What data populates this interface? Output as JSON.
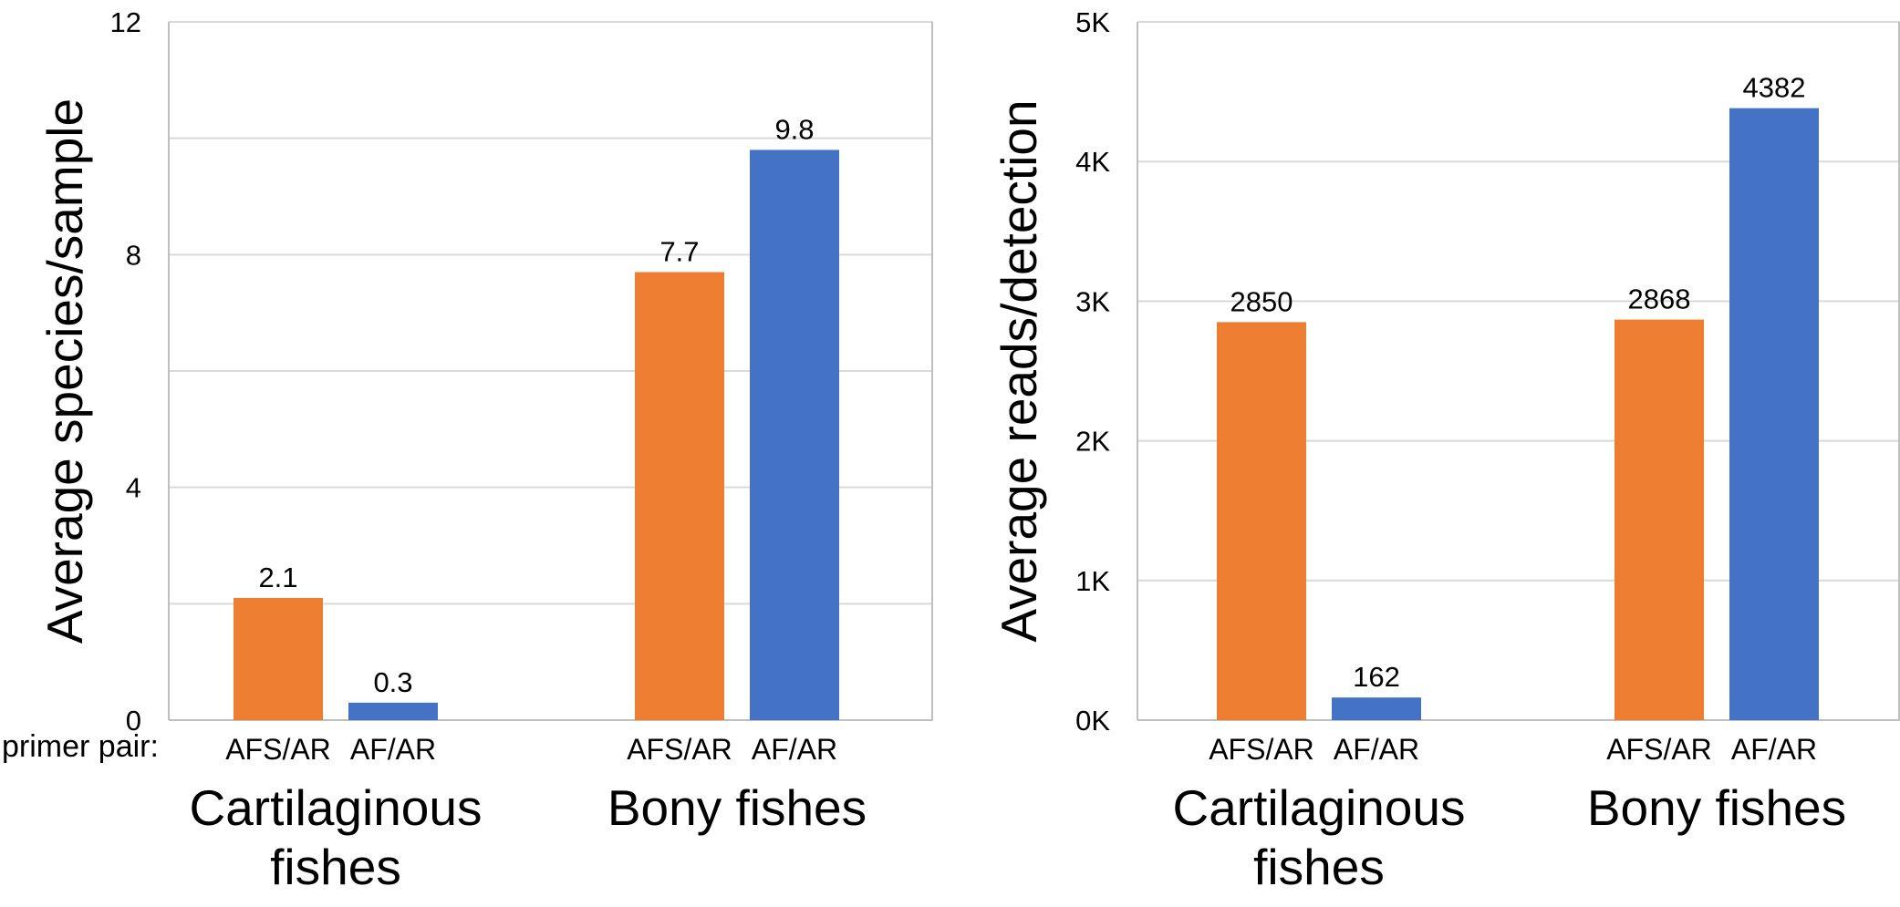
{
  "primer_label": "primer pair:",
  "colors": {
    "afs_ar": "#ED7D31",
    "af_ar": "#4472C4",
    "grid": "#D9D9D9",
    "axis": "#BFBFBF"
  },
  "chart_data": [
    {
      "type": "bar",
      "ylabel": "Average species/sample",
      "ylim": [
        0,
        12
      ],
      "ytick_values": [
        0,
        4,
        8,
        12
      ],
      "ytick_labels": [
        "0",
        "4",
        "8",
        "12"
      ],
      "minor_gridlines": [
        2,
        6,
        10
      ],
      "groups": [
        "Cartilaginous fishes",
        "Bony fishes"
      ],
      "group_label_lines": [
        [
          "Cartilaginous",
          "fishes"
        ],
        [
          "Bony fishes"
        ]
      ],
      "series": [
        {
          "name": "AFS/AR",
          "color": "#ED7D31",
          "values": [
            2.1,
            7.7
          ],
          "labels": [
            "2.1",
            "7.7"
          ]
        },
        {
          "name": "AF/AR",
          "color": "#4472C4",
          "values": [
            0.3,
            9.8
          ],
          "labels": [
            "0.3",
            "9.8"
          ]
        }
      ]
    },
    {
      "type": "bar",
      "ylabel": "Average reads/detection",
      "ylim": [
        0,
        5000
      ],
      "ytick_values": [
        0,
        1000,
        2000,
        3000,
        4000,
        5000
      ],
      "ytick_labels": [
        "0K",
        "1K",
        "2K",
        "3K",
        "4K",
        "5K"
      ],
      "minor_gridlines": [],
      "groups": [
        "Cartilaginous fishes",
        "Bony fishes"
      ],
      "group_label_lines": [
        [
          "Cartilaginous",
          "fishes"
        ],
        [
          "Bony fishes"
        ]
      ],
      "series": [
        {
          "name": "AFS/AR",
          "color": "#ED7D31",
          "values": [
            2850,
            2868
          ],
          "labels": [
            "2850",
            "2868"
          ]
        },
        {
          "name": "AF/AR",
          "color": "#4472C4",
          "values": [
            162,
            4382
          ],
          "labels": [
            "162",
            "4382"
          ]
        }
      ]
    }
  ]
}
